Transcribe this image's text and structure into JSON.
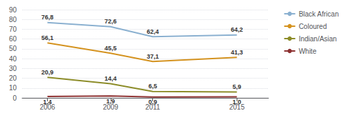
{
  "chart_data": {
    "type": "line",
    "x": [
      2006,
      2009,
      2011,
      2015
    ],
    "series": [
      {
        "name": "Black African",
        "color": "#8ab0d0",
        "values": [
          76.8,
          72.6,
          62.4,
          64.2
        ],
        "value_labels": [
          "76,8",
          "72,6",
          "62,4",
          "64,2"
        ]
      },
      {
        "name": "Coloured",
        "color": "#d4921e",
        "values": [
          56.1,
          45.5,
          37.1,
          41.3
        ],
        "value_labels": [
          "56,1",
          "45,5",
          "37,1",
          "41,3"
        ]
      },
      {
        "name": "Indian/Asian",
        "color": "#8c8c28",
        "values": [
          20.9,
          14.4,
          6.5,
          5.9
        ],
        "value_labels": [
          "20,9",
          "14,4",
          "6,5",
          "5,9"
        ]
      },
      {
        "name": "White",
        "color": "#8c3030",
        "values": [
          1.4,
          1.9,
          0.9,
          1.0
        ],
        "value_labels": [
          "1,4",
          "1,9",
          "0,9",
          "1,0"
        ]
      }
    ],
    "xlim": [
      2004.8,
      2016.5
    ],
    "xticks": [
      2006,
      2009,
      2011,
      2015
    ],
    "ylim": [
      0,
      90
    ],
    "yticks": [
      0,
      10,
      20,
      30,
      40,
      50,
      60,
      70,
      80,
      90
    ],
    "grid": true,
    "legend": "right",
    "data_labels": true
  }
}
